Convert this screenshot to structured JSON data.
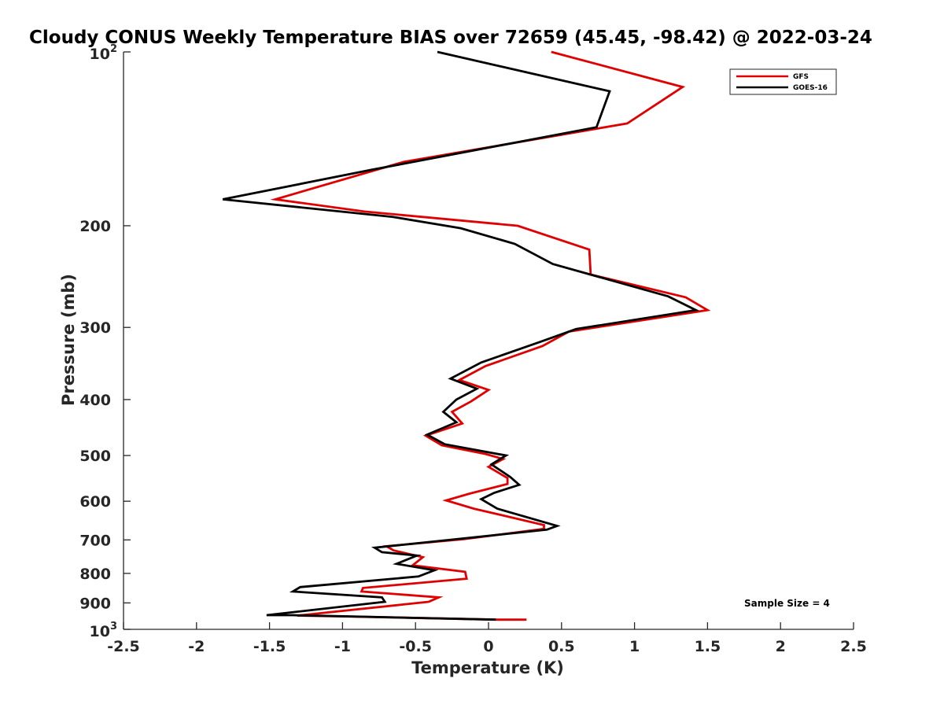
{
  "chart_data": {
    "type": "line",
    "title": "Cloudy CONUS Weekly Temperature BIAS over 72659 (45.45, -98.42) @ 2022-03-24",
    "xlabel": "Temperature (K)",
    "ylabel": "Pressure (mb)",
    "xlim": [
      -2.5,
      2.5
    ],
    "ylim": [
      100,
      1000
    ],
    "y_scale": "log",
    "y_reversed": true,
    "grid": false,
    "legend_position": "top-right",
    "x_ticks": [
      "-2.5",
      "-2",
      "-1.5",
      "-1",
      "-0.5",
      "0",
      "0.5",
      "1",
      "1.5",
      "2",
      "2.5"
    ],
    "x_tick_values": [
      -2.5,
      -2,
      -1.5,
      -1,
      -0.5,
      0,
      0.5,
      1,
      1.5,
      2,
      2.5
    ],
    "y_ticks": [
      {
        "value": 100,
        "base": "10",
        "exp": "2"
      },
      {
        "value": 200,
        "label": "200"
      },
      {
        "value": 300,
        "label": "300"
      },
      {
        "value": 400,
        "label": "400"
      },
      {
        "value": 500,
        "label": "500"
      },
      {
        "value": 600,
        "label": "600"
      },
      {
        "value": 700,
        "label": "700"
      },
      {
        "value": 800,
        "label": "800"
      },
      {
        "value": 900,
        "label": "900"
      },
      {
        "value": 1000,
        "base": "10",
        "exp": "3"
      }
    ],
    "annotation": "Sample Size = 4",
    "series": [
      {
        "name": "GFS",
        "color": "#e00000",
        "points": [
          [
            0.43,
            100
          ],
          [
            1.33,
            115
          ],
          [
            0.95,
            133
          ],
          [
            -0.58,
            155
          ],
          [
            -1.46,
            180
          ],
          [
            -0.85,
            189
          ],
          [
            0.2,
            200
          ],
          [
            0.69,
            220
          ],
          [
            0.7,
            243
          ],
          [
            1.35,
            266
          ],
          [
            1.5,
            280
          ],
          [
            0.55,
            305
          ],
          [
            0.37,
            323
          ],
          [
            -0.02,
            350
          ],
          [
            -0.2,
            370
          ],
          [
            0.0,
            385
          ],
          [
            -0.12,
            403
          ],
          [
            -0.25,
            420
          ],
          [
            -0.18,
            440
          ],
          [
            -0.43,
            462
          ],
          [
            -0.32,
            480
          ],
          [
            -0.02,
            497
          ],
          [
            0.1,
            507
          ],
          [
            0.0,
            523
          ],
          [
            0.13,
            547
          ],
          [
            0.13,
            560
          ],
          [
            -0.13,
            582
          ],
          [
            -0.29,
            598
          ],
          [
            -0.1,
            618
          ],
          [
            0.38,
            660
          ],
          [
            0.38,
            670
          ],
          [
            -0.17,
            698
          ],
          [
            -0.7,
            718
          ],
          [
            -0.65,
            730
          ],
          [
            -0.45,
            750
          ],
          [
            -0.52,
            775
          ],
          [
            -0.16,
            795
          ],
          [
            -0.15,
            817
          ],
          [
            -0.86,
            848
          ],
          [
            -0.87,
            860
          ],
          [
            -0.34,
            880
          ],
          [
            -0.41,
            896
          ],
          [
            -1.31,
            947
          ],
          [
            -0.98,
            950
          ],
          [
            0.06,
            962
          ],
          [
            0.26,
            962
          ]
        ]
      },
      {
        "name": "GOES-16",
        "color": "#000000",
        "points": [
          [
            -0.35,
            100
          ],
          [
            0.83,
            117
          ],
          [
            0.74,
            135
          ],
          [
            -0.8,
            160
          ],
          [
            -1.82,
            180
          ],
          [
            -0.66,
            193
          ],
          [
            -0.19,
            202
          ],
          [
            0.18,
            215
          ],
          [
            0.44,
            233
          ],
          [
            1.23,
            265
          ],
          [
            1.42,
            280
          ],
          [
            0.6,
            302
          ],
          [
            0.35,
            318
          ],
          [
            -0.05,
            345
          ],
          [
            -0.26,
            368
          ],
          [
            -0.08,
            383
          ],
          [
            -0.22,
            400
          ],
          [
            -0.31,
            420
          ],
          [
            -0.22,
            438
          ],
          [
            -0.42,
            460
          ],
          [
            -0.3,
            478
          ],
          [
            0.12,
            500
          ],
          [
            0.02,
            518
          ],
          [
            0.15,
            545
          ],
          [
            0.21,
            562
          ],
          [
            0.04,
            580
          ],
          [
            -0.05,
            595
          ],
          [
            0.06,
            618
          ],
          [
            0.47,
            662
          ],
          [
            0.4,
            672
          ],
          [
            -0.22,
            698
          ],
          [
            -0.78,
            722
          ],
          [
            -0.73,
            735
          ],
          [
            -0.49,
            745
          ],
          [
            -0.63,
            770
          ],
          [
            -0.37,
            790
          ],
          [
            -0.48,
            810
          ],
          [
            -1.29,
            845
          ],
          [
            -1.34,
            860
          ],
          [
            -0.73,
            880
          ],
          [
            -0.71,
            896
          ],
          [
            -1.52,
            945
          ],
          [
            -1.34,
            945
          ],
          [
            0.05,
            962
          ]
        ]
      }
    ]
  }
}
